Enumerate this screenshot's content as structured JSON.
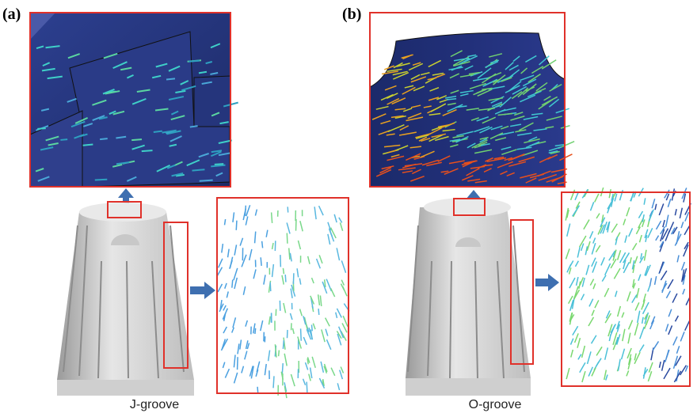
{
  "panels": [
    {
      "label": "(a)",
      "caption": "J-groove"
    },
    {
      "label": "(b)",
      "caption": "O-groove"
    }
  ]
}
